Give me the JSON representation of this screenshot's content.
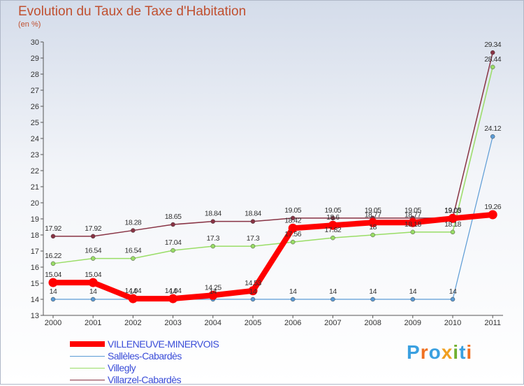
{
  "chart_data": {
    "type": "line",
    "title": "Evolution du Taux de Taxe d'Habitation",
    "subtitle": "(en %)",
    "x": [
      "2000",
      "2001",
      "2002",
      "2003",
      "2004",
      "2005",
      "2006",
      "2007",
      "2008",
      "2009",
      "2010",
      "2011"
    ],
    "ylim": [
      13,
      30
    ],
    "yticks": [
      13,
      14,
      15,
      16,
      17,
      18,
      19,
      20,
      21,
      22,
      23,
      24,
      25,
      26,
      27,
      28,
      29,
      30
    ],
    "grid": false,
    "legend_position": "bottom-left",
    "series": [
      {
        "name": "VILLENEUVE-MINERVOIS",
        "color": "#ff0000",
        "values": [
          15.04,
          15.04,
          14.04,
          14.04,
          14.25,
          14.53,
          18.42,
          18.6,
          18.77,
          18.77,
          19.03,
          19.26
        ],
        "labels": [
          "15.04",
          "15.04",
          "14.04",
          "14.04",
          "14.25",
          "14.53",
          "18.42",
          "18.6",
          "18.77",
          "18.77",
          "19.03",
          "19.26"
        ]
      },
      {
        "name": "Sallèles-Cabardès",
        "color": "#5b9bd5",
        "values": [
          14,
          14,
          14,
          14,
          14,
          14,
          14,
          14,
          14,
          14,
          14,
          24.12
        ],
        "labels": [
          "14",
          "14",
          "14",
          "14",
          "14",
          "14",
          "14",
          "14",
          "14",
          "14",
          "14",
          "24.12"
        ]
      },
      {
        "name": "Villegly",
        "color": "#99dd66",
        "values": [
          16.22,
          16.54,
          16.54,
          17.04,
          17.3,
          17.3,
          17.56,
          17.82,
          18,
          18.18,
          18.18,
          28.44
        ],
        "labels": [
          "16.22",
          "16.54",
          "16.54",
          "17.04",
          "17.3",
          "17.3",
          "17.56",
          "17.82",
          "18",
          "18.18",
          "18.18",
          "28.44"
        ]
      },
      {
        "name": "Villarzel-Cabardès",
        "color": "#883344",
        "values": [
          17.92,
          17.92,
          18.28,
          18.65,
          18.84,
          18.84,
          19.05,
          19.05,
          19.05,
          19.05,
          19.05,
          29.34
        ],
        "labels": [
          "17.92",
          "17.92",
          "18.28",
          "18.65",
          "18.84",
          "18.84",
          "19.05",
          "19.05",
          "19.05",
          "19.05",
          "19.05",
          "29.34"
        ]
      }
    ]
  },
  "logo": {
    "text": "Proxiti",
    "letters": [
      "P",
      "r",
      "o",
      "x",
      "i",
      "t",
      "i"
    ],
    "colors": [
      "#3aa0e0",
      "#f07020",
      "#3aa0e0",
      "#f0a020",
      "#70b030",
      "#3aa0e0",
      "#f07020"
    ]
  }
}
